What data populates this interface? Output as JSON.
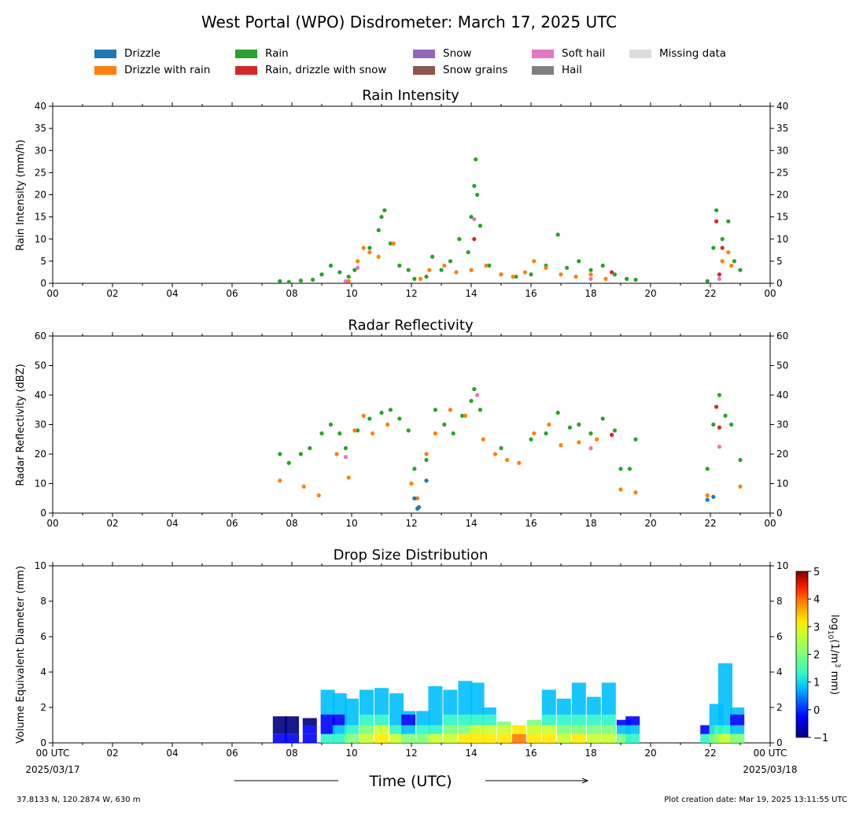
{
  "figure": {
    "title": "West Portal (WPO) Disdrometer: March 17, 2025 UTC",
    "location": "37.8133 N, 120.2874 W, 630 m",
    "creation_date": "Plot creation date: Mar 19, 2025 13:11:55 UTC",
    "time_axis_label": "Time (UTC)",
    "date_start": "2025/03/17",
    "date_end": "2025/03/18",
    "start_tick": "00 UTC",
    "end_tick": "00 UTC"
  },
  "legend": [
    {
      "label": "Drizzle",
      "color": "#1f77b4"
    },
    {
      "label": "Drizzle with rain",
      "color": "#ff7f0e"
    },
    {
      "label": "Rain",
      "color": "#2ca02c"
    },
    {
      "label": "Rain, drizzle with snow",
      "color": "#d62728"
    },
    {
      "label": "Snow",
      "color": "#9467bd"
    },
    {
      "label": "Snow grains",
      "color": "#8c564b"
    },
    {
      "label": "Soft hail",
      "color": "#e377c2"
    },
    {
      "label": "Hail",
      "color": "#7f7f7f"
    },
    {
      "label": "Missing data",
      "color": "#dddddd"
    }
  ],
  "x_ticks": [
    "00",
    "02",
    "04",
    "06",
    "08",
    "10",
    "12",
    "14",
    "16",
    "18",
    "20",
    "22",
    "00"
  ],
  "dsd_x_ticks": [
    "00 UTC",
    "02",
    "04",
    "06",
    "08",
    "10",
    "12",
    "14",
    "16",
    "18",
    "20",
    "22",
    "00 UTC"
  ],
  "colorbar": {
    "label_main": "log",
    "label_sub": "10",
    "label_rest": "(1/m",
    "label_sup": "3",
    "label_end": " mm)",
    "ticks": [
      "5",
      "4",
      "3",
      "2",
      "1",
      "0",
      "−1"
    ]
  },
  "chart_data": [
    {
      "type": "scatter",
      "title": "Rain Intensity",
      "xlabel": "",
      "ylabel": "Rain Intensity (mm/h)",
      "xlim": [
        0,
        24
      ],
      "ylim": [
        0,
        40
      ],
      "yticks": [
        0,
        5,
        10,
        15,
        20,
        25,
        30,
        35,
        40
      ],
      "series": [
        {
          "name": "Rain",
          "color": "#2ca02c",
          "x": [
            7.6,
            7.9,
            8.3,
            8.7,
            9.0,
            9.3,
            9.6,
            9.9,
            10.1,
            10.6,
            10.9,
            11.0,
            11.1,
            11.3,
            11.6,
            11.9,
            12.1,
            12.5,
            12.7,
            13.0,
            13.3,
            13.6,
            13.9,
            14.0,
            14.1,
            14.15,
            14.2,
            14.3,
            14.6,
            15.0,
            15.5,
            16.0,
            16.5,
            16.9,
            17.2,
            17.6,
            18.0,
            18.4,
            18.8,
            19.2,
            19.5,
            21.9,
            22.1,
            22.2,
            22.4,
            22.6,
            22.8,
            23.0
          ],
          "y": [
            0.5,
            0.3,
            0.6,
            0.8,
            2.0,
            4.0,
            2.5,
            1.5,
            3.0,
            8.0,
            12.0,
            15.0,
            16.5,
            9.0,
            4.0,
            3.0,
            1.0,
            1.5,
            6.0,
            3.0,
            5.0,
            10.0,
            7.0,
            15.0,
            22.0,
            28.0,
            20.0,
            13.0,
            4.0,
            2.0,
            1.5,
            2.0,
            4.0,
            11.0,
            3.5,
            5.0,
            3.0,
            4.0,
            2.0,
            1.0,
            0.8,
            0.5,
            8.0,
            16.5,
            10.0,
            14.0,
            5.0,
            3.0
          ]
        },
        {
          "name": "Drizzle with rain",
          "color": "#ff7f0e",
          "x": [
            9.9,
            10.2,
            10.4,
            10.6,
            10.9,
            11.4,
            12.3,
            12.6,
            13.1,
            13.5,
            14.0,
            14.5,
            15.0,
            15.4,
            15.8,
            16.1,
            16.5,
            17.0,
            17.5,
            18.0,
            18.5,
            22.4,
            22.6,
            22.7
          ],
          "y": [
            0.5,
            5.0,
            8.0,
            7.0,
            6.0,
            9.0,
            1.0,
            3.0,
            4.0,
            2.5,
            3.0,
            4.0,
            2.0,
            1.5,
            2.5,
            5.0,
            3.5,
            2.0,
            1.5,
            2.0,
            1.0,
            5.0,
            7.0,
            4.0
          ]
        },
        {
          "name": "Rain, drizzle with snow",
          "color": "#d62728",
          "x": [
            14.1,
            18.7,
            22.2,
            22.3,
            22.4
          ],
          "y": [
            10.0,
            2.5,
            14.0,
            2.0,
            8.0
          ]
        },
        {
          "name": "Soft hail",
          "color": "#e377c2",
          "x": [
            9.8,
            10.2,
            14.1,
            18.0,
            22.3
          ],
          "y": [
            0.5,
            3.5,
            14.5,
            1.0,
            1.0
          ]
        }
      ]
    },
    {
      "type": "scatter",
      "title": "Radar Reflectivity",
      "xlabel": "",
      "ylabel": "Radar Reflectivity (dBZ)",
      "xlim": [
        0,
        24
      ],
      "ylim": [
        0,
        60
      ],
      "yticks": [
        0,
        10,
        20,
        30,
        40,
        50,
        60
      ],
      "series": [
        {
          "name": "Rain",
          "color": "#2ca02c",
          "x": [
            7.6,
            7.9,
            8.3,
            8.6,
            9.0,
            9.3,
            9.6,
            9.8,
            10.2,
            10.6,
            11.0,
            11.3,
            11.6,
            11.9,
            12.1,
            12.5,
            12.8,
            13.1,
            13.4,
            13.7,
            14.0,
            14.1,
            14.3,
            15.0,
            16.0,
            16.5,
            16.9,
            17.3,
            17.6,
            18.0,
            18.4,
            18.8,
            19.0,
            19.3,
            19.5,
            21.9,
            22.1,
            22.3,
            22.5,
            22.7,
            23.0
          ],
          "y": [
            20.0,
            17.0,
            20.0,
            22.0,
            27.0,
            30.0,
            27.0,
            22.0,
            28.0,
            32.0,
            34.0,
            35.0,
            32.0,
            28.0,
            15.0,
            18.0,
            35.0,
            30.0,
            27.0,
            33.0,
            38.0,
            42.0,
            35.0,
            22.0,
            25.0,
            27.0,
            34.0,
            29.0,
            30.0,
            27.0,
            32.0,
            28.0,
            15.0,
            15.0,
            25.0,
            15.0,
            30.0,
            40.0,
            33.0,
            30.0,
            18.0
          ]
        },
        {
          "name": "Drizzle with rain",
          "color": "#ff7f0e",
          "x": [
            7.6,
            8.4,
            8.9,
            9.5,
            9.9,
            10.1,
            10.4,
            10.7,
            11.2,
            12.0,
            12.2,
            12.5,
            12.8,
            13.3,
            13.8,
            14.4,
            14.8,
            15.2,
            15.6,
            16.1,
            16.6,
            17.0,
            17.6,
            18.2,
            19.0,
            19.5,
            21.9,
            23.0
          ],
          "y": [
            11.0,
            9.0,
            6.0,
            20.0,
            12.0,
            28.0,
            33.0,
            27.0,
            30.0,
            10.0,
            5.0,
            20.0,
            27.0,
            35.0,
            33.0,
            25.0,
            20.0,
            18.0,
            17.0,
            27.0,
            30.0,
            23.0,
            24.0,
            25.0,
            8.0,
            7.0,
            6.0,
            9.0
          ]
        },
        {
          "name": "Drizzle",
          "color": "#1f77b4",
          "x": [
            12.1,
            12.2,
            12.25,
            12.5,
            21.9,
            22.1
          ],
          "y": [
            5.0,
            1.5,
            2.0,
            11.0,
            4.5,
            5.5
          ]
        },
        {
          "name": "Rain, drizzle with snow",
          "color": "#d62728",
          "x": [
            18.7,
            22.2,
            22.3
          ],
          "y": [
            26.5,
            36.0,
            29.0
          ]
        },
        {
          "name": "Soft hail",
          "color": "#e377c2",
          "x": [
            9.8,
            14.2,
            18.0,
            22.3
          ],
          "y": [
            19.0,
            40.0,
            22.0,
            22.5
          ]
        }
      ]
    },
    {
      "type": "heatmap",
      "title": "Drop Size Distribution",
      "xlabel": "Time (UTC)",
      "ylabel": "Volume Equivalent Diameter (mm)",
      "xlim": [
        0,
        24
      ],
      "ylim": [
        0,
        10
      ],
      "yticks": [
        0,
        2,
        4,
        6,
        8,
        10
      ],
      "colorbar_range": [
        -1,
        5
      ],
      "columns": [
        {
          "x": 7.6,
          "top": 1.5,
          "core": 0.5
        },
        {
          "x": 8.0,
          "top": 1.5,
          "core": 0.5
        },
        {
          "x": 8.6,
          "top": 1.4,
          "core": 0.6
        },
        {
          "x": 9.2,
          "top": 3.0,
          "core": 1.5
        },
        {
          "x": 9.6,
          "top": 2.8,
          "core": 1.8
        },
        {
          "x": 10.0,
          "top": 2.5,
          "core": 2.5
        },
        {
          "x": 10.5,
          "top": 3.0,
          "core": 3.0
        },
        {
          "x": 11.0,
          "top": 3.1,
          "core": 3.5
        },
        {
          "x": 11.5,
          "top": 2.8,
          "core": 2.8
        },
        {
          "x": 11.9,
          "top": 1.8,
          "core": 2.0
        },
        {
          "x": 12.4,
          "top": 1.8,
          "core": 2.5
        },
        {
          "x": 12.8,
          "top": 3.2,
          "core": 2.8
        },
        {
          "x": 13.3,
          "top": 3.0,
          "core": 3.0
        },
        {
          "x": 13.8,
          "top": 3.5,
          "core": 3.2
        },
        {
          "x": 14.2,
          "top": 3.4,
          "core": 3.5
        },
        {
          "x": 14.6,
          "top": 2.0,
          "core": 3.5
        },
        {
          "x": 15.1,
          "top": 1.2,
          "core": 3.8
        },
        {
          "x": 15.6,
          "top": 1.0,
          "core": 4.0
        },
        {
          "x": 16.1,
          "top": 1.3,
          "core": 3.8
        },
        {
          "x": 16.6,
          "top": 3.0,
          "core": 3.5
        },
        {
          "x": 17.1,
          "top": 2.5,
          "core": 3.0
        },
        {
          "x": 17.6,
          "top": 3.4,
          "core": 3.2
        },
        {
          "x": 18.1,
          "top": 2.6,
          "core": 3.0
        },
        {
          "x": 18.6,
          "top": 3.4,
          "core": 3.0
        },
        {
          "x": 19.1,
          "top": 1.3,
          "core": 2.0
        },
        {
          "x": 19.4,
          "top": 1.5,
          "core": 1.8
        },
        {
          "x": 21.9,
          "top": 0.8,
          "core": 1.5
        },
        {
          "x": 22.2,
          "top": 2.2,
          "core": 2.5
        },
        {
          "x": 22.5,
          "top": 4.5,
          "core": 2.8
        },
        {
          "x": 22.9,
          "top": 2.0,
          "core": 2.0
        }
      ]
    }
  ]
}
